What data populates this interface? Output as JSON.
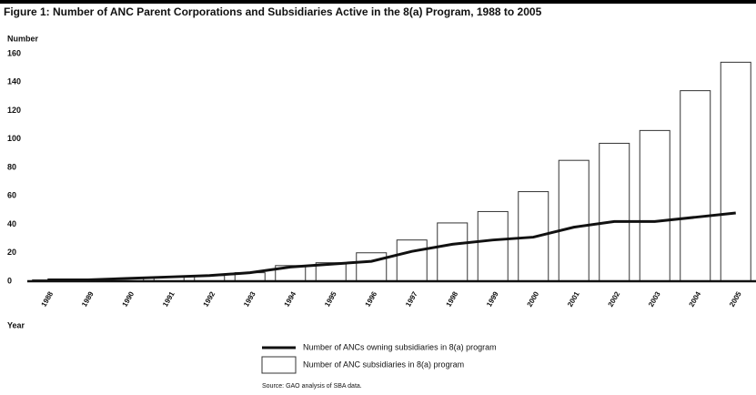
{
  "chart_data": {
    "type": "bar",
    "title": "Figure 1: Number of ANC Parent Corporations and Subsidiaries Active in the 8(a) Program, 1988 to 2005",
    "y_label": "Number",
    "x_label": "Year",
    "source": "Source: GAO analysis of SBA data.",
    "categories": [
      "1988",
      "1989",
      "1990",
      "1991",
      "1992",
      "1993",
      "1994",
      "1995",
      "1996",
      "1997",
      "1998",
      "1999",
      "2000",
      "2001",
      "2002",
      "2003",
      "2004",
      "2005"
    ],
    "series": [
      {
        "name": "Number of ANCs owning subsidiaries in 8(a) program",
        "type": "line",
        "color": "#111111",
        "values": [
          1,
          1,
          2,
          3,
          4,
          6,
          10,
          12,
          14,
          21,
          26,
          29,
          31,
          38,
          42,
          42,
          45,
          48
        ]
      },
      {
        "name": "Number of ANC subsidiaries in 8(a) program",
        "type": "bar",
        "color": "#ffffff",
        "values": [
          1,
          1,
          2,
          3,
          4,
          6,
          11,
          13,
          20,
          29,
          41,
          49,
          63,
          85,
          97,
          106,
          134,
          154
        ]
      }
    ],
    "ylim": [
      0,
      160
    ],
    "yticks": [
      0,
      20,
      40,
      60,
      80,
      100,
      120,
      140,
      160
    ],
    "grid": false
  }
}
